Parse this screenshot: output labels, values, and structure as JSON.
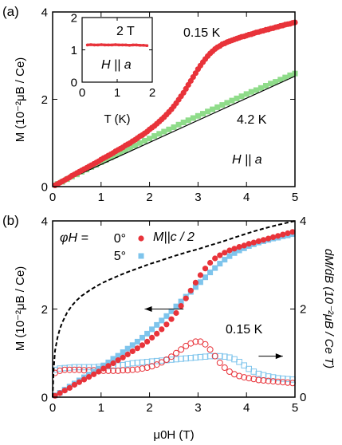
{
  "figure": {
    "width": 429,
    "height": 558
  },
  "chart_data": [
    {
      "panel_label": "(a)",
      "type": "scatter",
      "xlabel": "",
      "ylabel": "M (10⁻²μB / Ce)",
      "xlim": [
        0,
        5
      ],
      "ylim": [
        0,
        4
      ],
      "xticks": [
        "0",
        "1",
        "2",
        "3",
        "4",
        "5"
      ],
      "yticks": [
        "0",
        "2",
        "4"
      ],
      "series": [
        {
          "name": "0.15 K",
          "marker": "filled-circle",
          "color": "#e8333a",
          "x": [
            0.05,
            0.1,
            0.15,
            0.2,
            0.25,
            0.3,
            0.35,
            0.4,
            0.45,
            0.5,
            0.55,
            0.6,
            0.65,
            0.7,
            0.75,
            0.8,
            0.85,
            0.9,
            0.95,
            1.0,
            1.05,
            1.1,
            1.15,
            1.2,
            1.25,
            1.3,
            1.35,
            1.4,
            1.45,
            1.5,
            1.55,
            1.6,
            1.65,
            1.7,
            1.75,
            1.8,
            1.85,
            1.9,
            1.95,
            2.0,
            2.05,
            2.1,
            2.15,
            2.2,
            2.25,
            2.3,
            2.35,
            2.4,
            2.45,
            2.5,
            2.55,
            2.6,
            2.65,
            2.7,
            2.75,
            2.8,
            2.85,
            2.9,
            2.95,
            3.0,
            3.05,
            3.1,
            3.15,
            3.2,
            3.25,
            3.3,
            3.35,
            3.4,
            3.45,
            3.5,
            3.55,
            3.6,
            3.65,
            3.7,
            3.75,
            3.8,
            3.85,
            3.9,
            3.95,
            4.0,
            4.05,
            4.1,
            4.15,
            4.2,
            4.25,
            4.3,
            4.35,
            4.4,
            4.45,
            4.5,
            4.55,
            4.6,
            4.65,
            4.7,
            4.75,
            4.8,
            4.85,
            4.9,
            4.95,
            5.0
          ],
          "y": [
            0.03,
            0.06,
            0.09,
            0.12,
            0.15,
            0.18,
            0.21,
            0.25,
            0.28,
            0.31,
            0.34,
            0.37,
            0.4,
            0.43,
            0.46,
            0.49,
            0.52,
            0.55,
            0.58,
            0.62,
            0.65,
            0.68,
            0.71,
            0.74,
            0.77,
            0.81,
            0.84,
            0.87,
            0.9,
            0.94,
            0.97,
            1.0,
            1.04,
            1.07,
            1.11,
            1.15,
            1.18,
            1.22,
            1.26,
            1.31,
            1.35,
            1.39,
            1.44,
            1.49,
            1.54,
            1.59,
            1.65,
            1.71,
            1.77,
            1.84,
            1.91,
            1.99,
            2.07,
            2.15,
            2.24,
            2.33,
            2.42,
            2.51,
            2.6,
            2.69,
            2.77,
            2.85,
            2.92,
            2.99,
            3.05,
            3.1,
            3.15,
            3.19,
            3.22,
            3.26,
            3.28,
            3.31,
            3.33,
            3.35,
            3.37,
            3.39,
            3.41,
            3.43,
            3.44,
            3.46,
            3.48,
            3.49,
            3.51,
            3.53,
            3.54,
            3.56,
            3.57,
            3.59,
            3.6,
            3.62,
            3.63,
            3.65,
            3.66,
            3.68,
            3.69,
            3.71,
            3.72,
            3.73,
            3.75,
            3.76
          ]
        },
        {
          "name": "4.2 K",
          "marker": "filled-square",
          "color": "#8fdc8a",
          "x": [
            0.1,
            0.2,
            0.3,
            0.4,
            0.5,
            0.6,
            0.7,
            0.8,
            0.9,
            1.0,
            1.1,
            1.2,
            1.3,
            1.4,
            1.5,
            1.6,
            1.7,
            1.8,
            1.9,
            2.0,
            2.1,
            2.2,
            2.3,
            2.4,
            2.5,
            2.6,
            2.7,
            2.8,
            2.9,
            3.0,
            3.1,
            3.2,
            3.3,
            3.4,
            3.5,
            3.6,
            3.7,
            3.8,
            3.9,
            4.0,
            4.1,
            4.2,
            4.3,
            4.4,
            4.5,
            4.6,
            4.7,
            4.8,
            4.9,
            5.0
          ],
          "y": [
            0.06,
            0.11,
            0.17,
            0.23,
            0.28,
            0.34,
            0.39,
            0.45,
            0.5,
            0.56,
            0.61,
            0.67,
            0.72,
            0.78,
            0.83,
            0.89,
            0.94,
            1.0,
            1.05,
            1.1,
            1.16,
            1.21,
            1.26,
            1.31,
            1.36,
            1.42,
            1.47,
            1.52,
            1.57,
            1.62,
            1.67,
            1.72,
            1.77,
            1.82,
            1.87,
            1.92,
            1.97,
            2.02,
            2.07,
            2.12,
            2.17,
            2.21,
            2.26,
            2.31,
            2.36,
            2.4,
            2.45,
            2.5,
            2.55,
            2.59
          ]
        },
        {
          "name": "",
          "marker": "line",
          "color": "#000000",
          "x": [
            0,
            5
          ],
          "y": [
            0,
            2.53
          ]
        }
      ],
      "annotations": [
        "0.15 K",
        "4.2 K",
        "H || a"
      ],
      "inset": {
        "type": "line",
        "xlabel": "T (K)",
        "xlim": [
          0,
          2
        ],
        "ylim": [
          0,
          2
        ],
        "xticks": [
          "0",
          "1",
          "2"
        ],
        "yticks": [
          "0",
          "1",
          "2"
        ],
        "annotations": [
          "2 T",
          "H || a"
        ],
        "series": [
          {
            "name": "",
            "color": "#e8333a",
            "x": [
              0.15,
              0.25,
              0.35,
              0.45,
              0.55,
              0.65,
              0.75,
              0.85,
              0.95,
              1.05,
              1.15,
              1.25,
              1.35,
              1.45,
              1.55,
              1.65,
              1.75,
              1.85
            ],
            "y": [
              1.15,
              1.16,
              1.15,
              1.15,
              1.16,
              1.15,
              1.15,
              1.15,
              1.16,
              1.15,
              1.15,
              1.15,
              1.14,
              1.15,
              1.15,
              1.14,
              1.14,
              1.13
            ]
          }
        ]
      }
    },
    {
      "panel_label": "(b)",
      "type": "scatter",
      "xlabel": "μ0H (T)",
      "ylabel": "M (10⁻²μB / Ce)",
      "y2label": "dM/dB (10⁻²μB / Ce T)",
      "xlim": [
        0,
        5
      ],
      "ylim": [
        0,
        4
      ],
      "y2lim": [
        0,
        4
      ],
      "xticks": [
        "0",
        "1",
        "2",
        "3",
        "4",
        "5"
      ],
      "yticks": [
        "0",
        "2",
        "4"
      ],
      "y2ticks": [
        "0",
        "2",
        "4"
      ],
      "legend_title": "φH = ",
      "legend_placement": "top-left",
      "annotations": [
        "M||c / 2",
        "0.15 K"
      ],
      "series": [
        {
          "name": "0°",
          "marker": "filled-circle",
          "color": "#e8333a",
          "x": [
            0.05,
            0.15,
            0.25,
            0.35,
            0.45,
            0.55,
            0.65,
            0.75,
            0.85,
            0.95,
            1.05,
            1.15,
            1.25,
            1.35,
            1.45,
            1.55,
            1.65,
            1.75,
            1.85,
            1.95,
            2.05,
            2.15,
            2.25,
            2.35,
            2.45,
            2.55,
            2.65,
            2.75,
            2.85,
            2.95,
            3.05,
            3.15,
            3.25,
            3.35,
            3.45,
            3.55,
            3.65,
            3.75,
            3.85,
            3.95,
            4.05,
            4.15,
            4.25,
            4.35,
            4.45,
            4.55,
            4.65,
            4.75,
            4.85,
            4.95
          ],
          "y": [
            0.03,
            0.09,
            0.15,
            0.21,
            0.28,
            0.34,
            0.4,
            0.46,
            0.52,
            0.58,
            0.65,
            0.71,
            0.77,
            0.84,
            0.9,
            0.97,
            1.04,
            1.11,
            1.18,
            1.26,
            1.35,
            1.44,
            1.54,
            1.65,
            1.77,
            1.91,
            2.07,
            2.24,
            2.42,
            2.6,
            2.77,
            2.92,
            3.05,
            3.15,
            3.22,
            3.28,
            3.33,
            3.37,
            3.41,
            3.44,
            3.48,
            3.51,
            3.54,
            3.57,
            3.6,
            3.63,
            3.66,
            3.69,
            3.72,
            3.75
          ]
        },
        {
          "name": "5°",
          "marker": "filled-square",
          "color": "#7ec4ec",
          "x": [
            0.05,
            0.15,
            0.25,
            0.35,
            0.45,
            0.55,
            0.65,
            0.75,
            0.85,
            0.95,
            1.05,
            1.15,
            1.25,
            1.35,
            1.45,
            1.55,
            1.65,
            1.75,
            1.85,
            1.95,
            2.05,
            2.15,
            2.25,
            2.35,
            2.45,
            2.55,
            2.65,
            2.75,
            2.85,
            2.95,
            3.05,
            3.15,
            3.25,
            3.35,
            3.45,
            3.55,
            3.65,
            3.75,
            3.85,
            3.95,
            4.05,
            4.15,
            4.25,
            4.35,
            4.45,
            4.55,
            4.65,
            4.75,
            4.85,
            4.95
          ],
          "y": [
            0.04,
            0.1,
            0.17,
            0.24,
            0.31,
            0.38,
            0.45,
            0.51,
            0.58,
            0.65,
            0.72,
            0.79,
            0.87,
            0.94,
            1.02,
            1.1,
            1.18,
            1.26,
            1.35,
            1.44,
            1.54,
            1.64,
            1.74,
            1.84,
            1.95,
            2.06,
            2.17,
            2.28,
            2.39,
            2.5,
            2.61,
            2.72,
            2.83,
            2.93,
            3.03,
            3.12,
            3.2,
            3.27,
            3.33,
            3.38,
            3.43,
            3.47,
            3.51,
            3.54,
            3.57,
            3.6,
            3.62,
            3.65,
            3.67,
            3.7
          ]
        },
        {
          "name": "M||c / 2",
          "marker": "dashed-line",
          "color": "#000000",
          "x": [
            0,
            0.02,
            0.05,
            0.1,
            0.15,
            0.2,
            0.3,
            0.4,
            0.5,
            0.6,
            0.8,
            1.0,
            1.2,
            1.5,
            1.8,
            2.0,
            2.2,
            2.5,
            2.8,
            3.0,
            3.2,
            3.5,
            3.8,
            4.0,
            4.2,
            4.5,
            4.8,
            5.0
          ],
          "y": [
            0,
            0.6,
            1.05,
            1.35,
            1.55,
            1.7,
            1.92,
            2.08,
            2.2,
            2.3,
            2.45,
            2.58,
            2.68,
            2.82,
            2.94,
            3.02,
            3.09,
            3.2,
            3.3,
            3.36,
            3.43,
            3.53,
            3.64,
            3.71,
            3.78,
            3.87,
            3.95,
            4.0
          ]
        },
        {
          "name": "",
          "axis": "y2",
          "marker": "open-circle",
          "color": "#e8333a",
          "x": [
            0.05,
            0.15,
            0.25,
            0.35,
            0.45,
            0.55,
            0.65,
            0.75,
            0.85,
            0.95,
            1.05,
            1.15,
            1.25,
            1.35,
            1.45,
            1.55,
            1.65,
            1.75,
            1.85,
            1.95,
            2.05,
            2.15,
            2.25,
            2.35,
            2.45,
            2.55,
            2.65,
            2.75,
            2.85,
            2.95,
            3.05,
            3.15,
            3.25,
            3.35,
            3.45,
            3.55,
            3.65,
            3.75,
            3.85,
            3.95,
            4.05,
            4.15,
            4.25,
            4.35,
            4.45,
            4.55,
            4.65,
            4.75,
            4.85,
            4.95
          ],
          "y": [
            0.55,
            0.6,
            0.62,
            0.62,
            0.62,
            0.62,
            0.61,
            0.61,
            0.61,
            0.6,
            0.6,
            0.6,
            0.6,
            0.6,
            0.61,
            0.61,
            0.62,
            0.63,
            0.65,
            0.67,
            0.7,
            0.74,
            0.79,
            0.85,
            0.92,
            1.0,
            1.08,
            1.16,
            1.22,
            1.26,
            1.26,
            1.2,
            1.08,
            0.93,
            0.78,
            0.67,
            0.58,
            0.52,
            0.48,
            0.45,
            0.43,
            0.41,
            0.39,
            0.38,
            0.37,
            0.36,
            0.35,
            0.34,
            0.33,
            0.32
          ]
        },
        {
          "name": "",
          "axis": "y2",
          "marker": "open-square",
          "color": "#7ec4ec",
          "x": [
            0.05,
            0.15,
            0.25,
            0.35,
            0.45,
            0.55,
            0.65,
            0.75,
            0.85,
            0.95,
            1.05,
            1.15,
            1.25,
            1.35,
            1.45,
            1.55,
            1.65,
            1.75,
            1.85,
            1.95,
            2.05,
            2.15,
            2.25,
            2.35,
            2.45,
            2.55,
            2.65,
            2.75,
            2.85,
            2.95,
            3.05,
            3.15,
            3.25,
            3.35,
            3.45,
            3.55,
            3.65,
            3.75,
            3.85,
            3.95,
            4.05,
            4.15,
            4.25,
            4.35,
            4.45,
            4.55,
            4.65,
            4.75,
            4.85,
            4.95
          ],
          "y": [
            0.62,
            0.65,
            0.66,
            0.67,
            0.68,
            0.68,
            0.68,
            0.68,
            0.68,
            0.69,
            0.69,
            0.7,
            0.71,
            0.72,
            0.73,
            0.75,
            0.77,
            0.78,
            0.79,
            0.8,
            0.81,
            0.82,
            0.83,
            0.84,
            0.85,
            0.86,
            0.87,
            0.88,
            0.89,
            0.9,
            0.91,
            0.92,
            0.93,
            0.93,
            0.93,
            0.92,
            0.9,
            0.86,
            0.8,
            0.72,
            0.64,
            0.58,
            0.53,
            0.5,
            0.47,
            0.45,
            0.43,
            0.42,
            0.41,
            0.4
          ]
        }
      ],
      "arrows": [
        {
          "direction": "left",
          "axis": "y",
          "x_from": 2.7,
          "x_to": 1.9,
          "y": 2.0
        },
        {
          "direction": "right",
          "axis": "y2",
          "x_from": 4.25,
          "x_to": 4.75,
          "y": 0.93
        }
      ]
    }
  ]
}
